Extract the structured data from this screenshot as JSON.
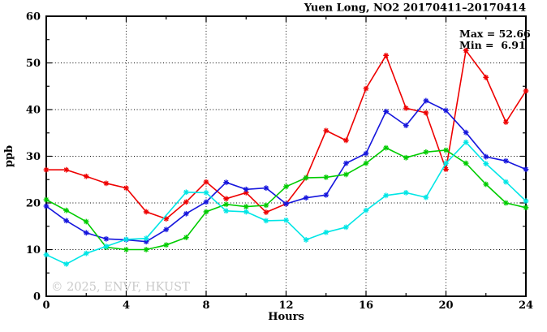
{
  "window": {
    "background": "#ffffff"
  },
  "chart_data": {
    "type": "line",
    "title": "Yuen Long, NO2 20170411–20170414",
    "xlabel": "Hours",
    "ylabel": "ppb",
    "xlim": [
      0,
      24
    ],
    "ylim": [
      0,
      60
    ],
    "x_major_ticks": [
      0,
      4,
      8,
      12,
      16,
      20,
      24
    ],
    "x_minor_step": 2,
    "y_major_ticks": [
      0,
      10,
      20,
      30,
      40,
      50,
      60
    ],
    "y_minor_step": 5,
    "grid": "dotted-black-major",
    "legend_position": "none",
    "x": [
      0,
      1,
      2,
      3,
      4,
      5,
      6,
      7,
      8,
      9,
      10,
      11,
      12,
      13,
      14,
      15,
      16,
      17,
      18,
      19,
      20,
      21,
      22,
      23,
      24
    ],
    "series": [
      {
        "name": "red",
        "color": "#ee0000",
        "values": [
          27.1,
          27.1,
          25.7,
          24.2,
          23.2,
          18.1,
          16.6,
          20.2,
          24.5,
          20.9,
          22.2,
          18.0,
          19.8,
          25.4,
          35.5,
          33.4,
          44.5,
          51.6,
          40.3,
          39.3,
          27.2,
          52.66,
          46.9,
          37.3,
          44.0
        ]
      },
      {
        "name": "blue",
        "color": "#1616dd",
        "values": [
          19.3,
          16.2,
          13.6,
          12.3,
          12.1,
          11.7,
          14.3,
          17.7,
          20.2,
          24.4,
          22.9,
          23.2,
          19.8,
          21.1,
          21.7,
          28.5,
          30.6,
          39.6,
          36.6,
          41.9,
          39.8,
          35.1,
          29.9,
          29.0,
          27.2
        ]
      },
      {
        "name": "green",
        "color": "#00cc00",
        "values": [
          20.7,
          18.4,
          16.0,
          10.5,
          10.0,
          10.0,
          11.0,
          12.6,
          18.1,
          19.7,
          19.2,
          19.5,
          23.5,
          25.4,
          25.5,
          26.1,
          28.5,
          31.8,
          29.7,
          30.9,
          31.3,
          28.5,
          24.0,
          20.0,
          19.0
        ]
      },
      {
        "name": "cyan",
        "color": "#00e6e6",
        "values": [
          8.9,
          6.91,
          9.2,
          10.7,
          12.2,
          12.4,
          null,
          22.3,
          22.2,
          18.3,
          18.1,
          16.2,
          16.3,
          12.1,
          13.7,
          14.8,
          18.4,
          21.6,
          22.2,
          21.2,
          28.5,
          33.0,
          28.4,
          24.5,
          20.4
        ]
      }
    ],
    "annotations": {
      "max": 52.66,
      "min": 6.91,
      "max_label": "Max = 52.66",
      "min_label": "Min =  6.91"
    },
    "watermark": "© 2025, ENVF, HKUST"
  }
}
